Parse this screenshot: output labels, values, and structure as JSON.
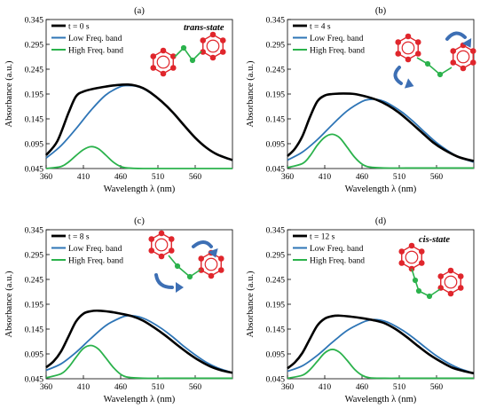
{
  "figure": {
    "title": ""
  },
  "chart_data": [
    {
      "type": "line",
      "panel_label": "(a)",
      "annotation": "trans-state",
      "xlabel": "Wavelength λ (nm)",
      "ylabel": "Absorbance (a.u.)",
      "xlim": [
        360,
        610
      ],
      "ylim": [
        0.045,
        0.345
      ],
      "xticks": [
        360,
        410,
        460,
        510,
        560
      ],
      "yticks": [
        0.045,
        0.095,
        0.145,
        0.195,
        0.245,
        0.295,
        0.345
      ],
      "grid": false,
      "legend_position": "top-left",
      "series": [
        {
          "name": "t = 0 s",
          "color": "#000000",
          "x": [
            360,
            375,
            390,
            400,
            410,
            425,
            440,
            455,
            470,
            480,
            490,
            500,
            515,
            530,
            545,
            560,
            575,
            590,
            610
          ],
          "y": [
            0.072,
            0.1,
            0.157,
            0.19,
            0.2,
            0.206,
            0.21,
            0.213,
            0.214,
            0.212,
            0.207,
            0.198,
            0.18,
            0.158,
            0.132,
            0.107,
            0.087,
            0.073,
            0.062
          ]
        },
        {
          "name": "Low Freq. band",
          "color": "#2e75b6",
          "x": [
            360,
            380,
            400,
            420,
            440,
            460,
            470,
            480,
            490,
            500,
            515,
            530,
            545,
            560,
            575,
            590,
            610
          ],
          "y": [
            0.066,
            0.091,
            0.125,
            0.162,
            0.193,
            0.21,
            0.212,
            0.211,
            0.206,
            0.197,
            0.18,
            0.158,
            0.132,
            0.107,
            0.087,
            0.073,
            0.062
          ]
        },
        {
          "name": "High Freq. band",
          "color": "#2bb24c",
          "x": [
            360,
            380,
            390,
            400,
            410,
            420,
            430,
            440,
            450,
            460,
            470,
            490,
            520,
            560,
            610
          ],
          "y": [
            0.045,
            0.049,
            0.058,
            0.071,
            0.083,
            0.089,
            0.085,
            0.072,
            0.058,
            0.049,
            0.046,
            0.045,
            0.045,
            0.045,
            0.045
          ]
        }
      ]
    },
    {
      "type": "line",
      "panel_label": "(b)",
      "annotation": "",
      "xlabel": "Wavelength λ (nm)",
      "ylabel": "Absorbance (a.u.)",
      "xlim": [
        360,
        610
      ],
      "ylim": [
        0.045,
        0.345
      ],
      "xticks": [
        360,
        410,
        460,
        510,
        560
      ],
      "yticks": [
        0.045,
        0.095,
        0.145,
        0.195,
        0.245,
        0.295,
        0.345
      ],
      "grid": false,
      "legend_position": "top-left",
      "series": [
        {
          "name": "t = 4 s",
          "color": "#000000",
          "x": [
            360,
            370,
            380,
            390,
            400,
            410,
            420,
            435,
            450,
            465,
            480,
            495,
            510,
            525,
            540,
            555,
            570,
            590,
            610
          ],
          "y": [
            0.07,
            0.085,
            0.11,
            0.148,
            0.18,
            0.192,
            0.195,
            0.196,
            0.195,
            0.19,
            0.183,
            0.172,
            0.157,
            0.138,
            0.118,
            0.098,
            0.083,
            0.068,
            0.06
          ]
        },
        {
          "name": "Low Freq. band",
          "color": "#2e75b6",
          "x": [
            360,
            380,
            400,
            420,
            440,
            460,
            470,
            480,
            490,
            500,
            515,
            530,
            545,
            560,
            575,
            590,
            610
          ],
          "y": [
            0.062,
            0.078,
            0.103,
            0.133,
            0.161,
            0.18,
            0.184,
            0.184,
            0.18,
            0.172,
            0.157,
            0.138,
            0.117,
            0.097,
            0.081,
            0.068,
            0.058
          ]
        },
        {
          "name": "High Freq. band",
          "color": "#2bb24c",
          "x": [
            360,
            380,
            390,
            400,
            410,
            420,
            430,
            440,
            450,
            460,
            470,
            490,
            520,
            560,
            610
          ],
          "y": [
            0.047,
            0.055,
            0.07,
            0.092,
            0.108,
            0.114,
            0.107,
            0.088,
            0.068,
            0.054,
            0.048,
            0.046,
            0.046,
            0.046,
            0.046
          ]
        }
      ]
    },
    {
      "type": "line",
      "panel_label": "(c)",
      "annotation": "",
      "xlabel": "Wavelength λ (nm)",
      "ylabel": "Absorbance (a.u.)",
      "xlim": [
        360,
        610
      ],
      "ylim": [
        0.045,
        0.345
      ],
      "xticks": [
        360,
        410,
        460,
        510,
        560
      ],
      "yticks": [
        0.045,
        0.095,
        0.145,
        0.195,
        0.245,
        0.295,
        0.345
      ],
      "grid": false,
      "legend_position": "top-left",
      "series": [
        {
          "name": "t = 8 s",
          "color": "#000000",
          "x": [
            360,
            370,
            380,
            390,
            400,
            410,
            420,
            430,
            445,
            460,
            475,
            490,
            505,
            520,
            535,
            550,
            565,
            580,
            595,
            610
          ],
          "y": [
            0.068,
            0.08,
            0.1,
            0.13,
            0.16,
            0.176,
            0.181,
            0.182,
            0.18,
            0.176,
            0.171,
            0.162,
            0.148,
            0.132,
            0.114,
            0.097,
            0.082,
            0.07,
            0.062,
            0.057
          ]
        },
        {
          "name": "Low Freq. band",
          "color": "#2e75b6",
          "x": [
            360,
            380,
            400,
            420,
            440,
            460,
            470,
            480,
            490,
            500,
            515,
            530,
            545,
            560,
            575,
            590,
            610
          ],
          "y": [
            0.062,
            0.075,
            0.098,
            0.126,
            0.152,
            0.168,
            0.172,
            0.171,
            0.167,
            0.16,
            0.146,
            0.129,
            0.11,
            0.093,
            0.078,
            0.067,
            0.057
          ]
        },
        {
          "name": "High Freq. band",
          "color": "#2bb24c",
          "x": [
            360,
            380,
            390,
            400,
            410,
            420,
            430,
            440,
            450,
            460,
            470,
            490,
            520,
            560,
            610
          ],
          "y": [
            0.047,
            0.055,
            0.068,
            0.088,
            0.106,
            0.112,
            0.105,
            0.087,
            0.068,
            0.054,
            0.048,
            0.046,
            0.046,
            0.046,
            0.046
          ]
        }
      ]
    },
    {
      "type": "line",
      "panel_label": "(d)",
      "annotation": "cis-state",
      "xlabel": "Wavelength λ (nm)",
      "ylabel": "Absorbance (a.u.)",
      "xlim": [
        360,
        610
      ],
      "ylim": [
        0.045,
        0.345
      ],
      "xticks": [
        360,
        410,
        460,
        510,
        560
      ],
      "yticks": [
        0.045,
        0.095,
        0.145,
        0.195,
        0.245,
        0.295,
        0.345
      ],
      "grid": false,
      "legend_position": "top-left",
      "series": [
        {
          "name": "t = 12 s",
          "color": "#000000",
          "x": [
            360,
            370,
            380,
            390,
            400,
            410,
            420,
            430,
            445,
            460,
            475,
            490,
            505,
            520,
            535,
            550,
            565,
            580,
            595,
            610
          ],
          "y": [
            0.066,
            0.078,
            0.097,
            0.125,
            0.152,
            0.166,
            0.171,
            0.172,
            0.17,
            0.167,
            0.163,
            0.157,
            0.145,
            0.129,
            0.111,
            0.094,
            0.08,
            0.068,
            0.061,
            0.056
          ]
        },
        {
          "name": "Low Freq. band",
          "color": "#2e75b6",
          "x": [
            360,
            380,
            400,
            420,
            440,
            460,
            470,
            480,
            490,
            500,
            515,
            530,
            545,
            560,
            575,
            590,
            610
          ],
          "y": [
            0.06,
            0.071,
            0.092,
            0.118,
            0.142,
            0.158,
            0.163,
            0.164,
            0.161,
            0.155,
            0.142,
            0.126,
            0.108,
            0.091,
            0.077,
            0.066,
            0.056
          ]
        },
        {
          "name": "High Freq. band",
          "color": "#2bb24c",
          "x": [
            360,
            380,
            390,
            400,
            410,
            420,
            430,
            440,
            450,
            460,
            470,
            490,
            520,
            560,
            610
          ],
          "y": [
            0.046,
            0.052,
            0.063,
            0.08,
            0.097,
            0.104,
            0.098,
            0.082,
            0.064,
            0.052,
            0.047,
            0.046,
            0.046,
            0.046,
            0.046
          ]
        }
      ]
    }
  ]
}
